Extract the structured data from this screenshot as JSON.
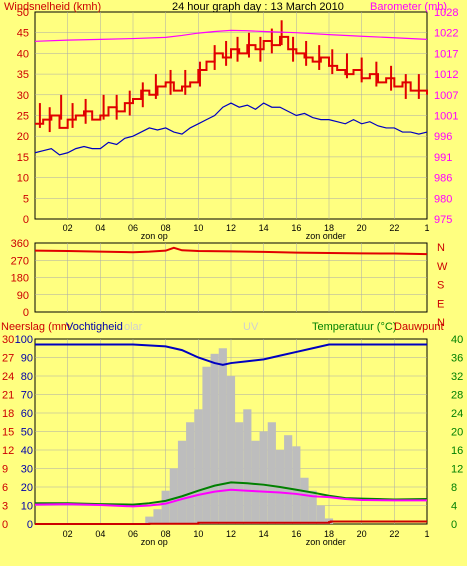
{
  "colors": {
    "background": "#ffff80",
    "plot_bg": "#ffff80",
    "grid": "#aaaaaa",
    "wind": "#e00000",
    "gust": "#e00000",
    "baro": "#ff00ff",
    "dir": "#e00000",
    "humidity": "#0000c0",
    "temp": "#008000",
    "dew": "#ff00ff",
    "rain": "#cc0000",
    "solar": "#bdbdbd",
    "label_red": "#cc0000",
    "label_magenta": "#ff00ff",
    "label_green": "#008000",
    "label_blue": "#0000aa",
    "label_dark": "#000000",
    "label_faded": "#d0d0d0"
  },
  "chart_data": [
    {
      "type": "line",
      "title": "24 hour graph day : 13 March 2010",
      "ylabel_left": "Windsnelheid (kmh)",
      "ylabel_right": "Barometer (mb)",
      "ylim_left": [
        0,
        50
      ],
      "yticks_left": [
        "0",
        "5",
        "10",
        "15",
        "20",
        "25",
        "30",
        "35",
        "40",
        "45",
        "50"
      ],
      "ylim_right": [
        975,
        1028
      ],
      "yticks_right": [
        "975",
        "980",
        "986",
        "991",
        "996",
        "1001",
        "1007",
        "1012",
        "1017",
        "1022",
        "1028"
      ],
      "xlim": [
        0,
        24
      ],
      "xticks": [
        "02",
        "04",
        "06",
        "08",
        "10",
        "12",
        "14",
        "16",
        "18",
        "20",
        "22",
        "1"
      ],
      "xtick_pos": [
        2,
        4,
        6,
        8,
        10,
        12,
        14,
        16,
        18,
        20,
        22,
        24
      ],
      "annotations": [
        {
          "x": 7.3,
          "text": "zon op"
        },
        {
          "x": 17.8,
          "text": "zon onder"
        }
      ],
      "grid": true,
      "series": [
        {
          "name": "Windsnelheid",
          "axis": "left",
          "style": "step",
          "x": [
            0,
            0.5,
            1,
            1.5,
            2,
            2.5,
            3,
            3.5,
            4,
            4.5,
            5,
            5.5,
            6,
            6.5,
            7,
            7.5,
            8,
            8.5,
            9,
            9.5,
            10,
            10.5,
            11,
            11.5,
            12,
            12.5,
            13,
            13.5,
            14,
            14.5,
            15,
            15.5,
            16,
            16.5,
            17,
            17.5,
            18,
            18.5,
            19,
            19.5,
            20,
            20.5,
            21,
            21.5,
            22,
            22.5,
            23,
            23.5,
            24
          ],
          "values": [
            23,
            24,
            25,
            22,
            24,
            25,
            26,
            24,
            25,
            27,
            26,
            28,
            29,
            31,
            30,
            32,
            33,
            31,
            32,
            33,
            36,
            38,
            40,
            39,
            41,
            40,
            42,
            41,
            43,
            42,
            44,
            41,
            40,
            39,
            38,
            39,
            37,
            36,
            35,
            36,
            34,
            35,
            33,
            34,
            32,
            33,
            31,
            31,
            30
          ]
        },
        {
          "name": "Windstoten",
          "axis": "left",
          "style": "spikes",
          "x": [
            0.3,
            0.9,
            1.6,
            2.3,
            3.1,
            4.2,
            5.0,
            5.8,
            6.6,
            7.4,
            8.3,
            9.2,
            10.1,
            11.0,
            11.7,
            12.4,
            13.1,
            13.8,
            14.5,
            15.1,
            15.8,
            16.6,
            17.4,
            18.2,
            19.1,
            20.0,
            20.9,
            21.8,
            22.7,
            23.5
          ],
          "values": [
            28,
            27,
            30,
            28,
            29,
            30,
            30,
            31,
            33,
            35,
            36,
            36,
            38,
            42,
            43,
            44,
            45,
            44,
            46,
            48,
            44,
            43,
            42,
            41,
            40,
            39,
            38,
            37,
            35,
            35
          ]
        },
        {
          "name": "Windgemiddelde",
          "axis": "left",
          "style": "line",
          "color_key": "humidity",
          "x": [
            0,
            0.5,
            1,
            1.5,
            2,
            2.5,
            3,
            3.5,
            4,
            4.5,
            5,
            5.5,
            6,
            6.5,
            7,
            7.5,
            8,
            8.5,
            9,
            9.5,
            10,
            10.5,
            11,
            11.5,
            12,
            12.5,
            13,
            13.5,
            14,
            14.5,
            15,
            15.5,
            16,
            16.5,
            17,
            17.5,
            18,
            18.5,
            19,
            19.5,
            20,
            20.5,
            21,
            21.5,
            22,
            22.5,
            23,
            23.5,
            24
          ],
          "values": [
            16,
            16.5,
            17,
            15.5,
            16,
            17,
            17.5,
            17,
            17,
            18.5,
            18,
            19.5,
            20,
            21,
            22,
            21.5,
            22,
            21,
            20.5,
            22,
            23,
            24,
            25,
            27,
            28,
            27,
            27.5,
            26.5,
            28,
            27,
            27,
            26,
            25,
            25.5,
            24.5,
            24,
            24,
            23.5,
            23,
            24,
            23,
            23.5,
            22.5,
            22,
            22,
            21,
            21,
            20.5,
            21
          ]
        },
        {
          "name": "Barometer",
          "axis": "right",
          "style": "line",
          "x": [
            0,
            2,
            4,
            6,
            8,
            9,
            10,
            11,
            12,
            13,
            14,
            16,
            18,
            20,
            22,
            24
          ],
          "values": [
            1020.5,
            1020.8,
            1021.0,
            1021.2,
            1021.5,
            1022.0,
            1022.6,
            1023.0,
            1023.3,
            1023.2,
            1023.0,
            1022.7,
            1022.2,
            1021.8,
            1021.4,
            1021.0
          ]
        }
      ]
    },
    {
      "type": "line",
      "ylabel_right": "N W S E N",
      "ylim": [
        0,
        360
      ],
      "yticks": [
        "0",
        "90",
        "180",
        "270",
        "360"
      ],
      "compass": [
        "N",
        "W",
        "S",
        "E",
        "N"
      ],
      "xlim": [
        0,
        24
      ],
      "grid": true,
      "series": [
        {
          "name": "Windrichting",
          "x": [
            0,
            2,
            4,
            6,
            7,
            8,
            8.5,
            9,
            10,
            12,
            14,
            16,
            18,
            20,
            22,
            24
          ],
          "values": [
            320,
            318,
            315,
            312,
            315,
            320,
            335,
            322,
            318,
            316,
            314,
            310,
            308,
            306,
            305,
            302
          ]
        }
      ]
    },
    {
      "type": "line",
      "ylabel_left": "Neerslag (mm",
      "ylabel_left2": "Vochtigheid",
      "ylabel_solar": "olar",
      "ylabel_uv": "UV",
      "ylabel_right": "Temperatuur (°C)",
      "ylabel_right2": "Dauwpunt",
      "yticks_left_rain": [
        "0",
        "3",
        "6",
        "9",
        "12",
        "15",
        "18",
        "21",
        "24",
        "27",
        "30"
      ],
      "yticks_left_hum": [
        "0",
        "10",
        "20",
        "30",
        "40",
        "50",
        "60",
        "70",
        "80",
        "90",
        "100"
      ],
      "yticks_right": [
        "0",
        "4",
        "8",
        "12",
        "16",
        "20",
        "24",
        "28",
        "32",
        "36",
        "40"
      ],
      "ylim_hum": [
        0,
        100
      ],
      "ylim_temp": [
        0,
        40
      ],
      "ylim_rain": [
        0,
        30
      ],
      "xlim": [
        0,
        24
      ],
      "xticks": [
        "02",
        "04",
        "06",
        "08",
        "10",
        "12",
        "14",
        "16",
        "18",
        "20",
        "22",
        "1"
      ],
      "xtick_pos": [
        2,
        4,
        6,
        8,
        10,
        12,
        14,
        16,
        18,
        20,
        22,
        24
      ],
      "annotations": [
        {
          "x": 7.3,
          "text": "zon op"
        },
        {
          "x": 17.8,
          "text": "zon onder"
        }
      ],
      "grid": true,
      "series": [
        {
          "name": "Zonnestraling",
          "style": "bars",
          "axis": "hum",
          "x": [
            7.0,
            7.5,
            8.0,
            8.5,
            9.0,
            9.5,
            10.0,
            10.5,
            11.0,
            11.5,
            12.0,
            12.5,
            13.0,
            13.5,
            14.0,
            14.5,
            15.0,
            15.5,
            16.0,
            16.5,
            17.0,
            17.5,
            18.0
          ],
          "values": [
            4,
            8,
            18,
            30,
            45,
            55,
            62,
            85,
            92,
            95,
            80,
            55,
            62,
            45,
            50,
            55,
            40,
            48,
            42,
            25,
            18,
            10,
            3
          ]
        },
        {
          "name": "Vochtigheid",
          "style": "line",
          "axis": "hum",
          "x": [
            0,
            2,
            4,
            6,
            8,
            9,
            10,
            11,
            11.5,
            12,
            13,
            14,
            15,
            16,
            17,
            18,
            20,
            22,
            24
          ],
          "values": [
            97,
            97,
            97,
            97,
            96,
            94,
            90,
            87,
            86,
            87,
            88,
            89,
            91,
            93,
            95,
            97,
            97,
            97,
            97
          ]
        },
        {
          "name": "Temperatuur",
          "style": "line",
          "axis": "temp",
          "x": [
            0,
            2,
            4,
            6,
            7,
            8,
            9,
            10,
            11,
            12,
            13,
            14,
            15,
            16,
            17,
            18,
            19,
            20,
            22,
            24
          ],
          "values": [
            4.5,
            4.5,
            4.3,
            4.2,
            4.5,
            5.0,
            6.0,
            7.2,
            8.3,
            9.0,
            8.8,
            8.5,
            8.0,
            7.4,
            6.8,
            6.1,
            5.6,
            5.5,
            5.3,
            5.4
          ]
        },
        {
          "name": "Dauwpunt",
          "style": "line",
          "axis": "temp",
          "x": [
            0,
            2,
            4,
            6,
            7,
            8,
            9,
            10,
            11,
            12,
            13,
            14,
            15,
            16,
            17,
            18,
            19,
            20,
            22,
            24
          ],
          "values": [
            4.2,
            4.3,
            4.1,
            3.8,
            4.0,
            4.4,
            5.4,
            6.3,
            7.0,
            7.4,
            7.2,
            7.0,
            6.8,
            6.5,
            6.0,
            5.8,
            5.4,
            5.2,
            5.1,
            5.1
          ]
        },
        {
          "name": "Neerslag",
          "style": "step",
          "axis": "rain",
          "x": [
            0,
            7,
            10,
            18,
            18.1,
            24
          ],
          "values": [
            0,
            0.05,
            0.2,
            0.3,
            0.4,
            0.4
          ]
        }
      ]
    }
  ]
}
